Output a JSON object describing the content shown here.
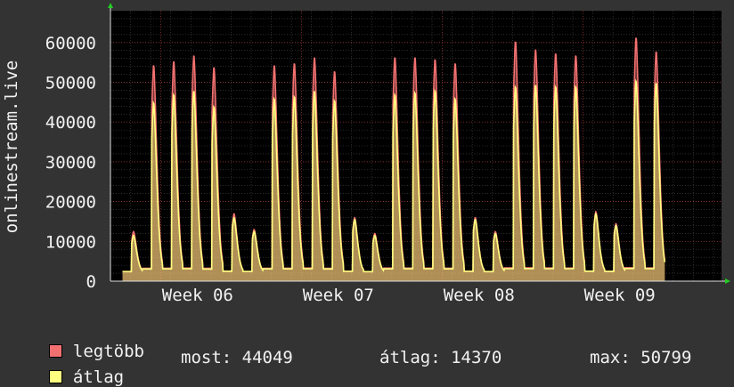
{
  "chart_data": {
    "type": "area",
    "ylabel": "onlinestream.live",
    "ylim": [
      0,
      68000
    ],
    "yticks": [
      0,
      10000,
      20000,
      30000,
      40000,
      50000,
      60000
    ],
    "xticks": [
      {
        "label": "Week 06",
        "day": 5
      },
      {
        "label": "Week 07",
        "day": 12
      },
      {
        "label": "Week 08",
        "day": 19
      },
      {
        "label": "Week 09",
        "day": 26
      }
    ],
    "x_range_days": [
      0,
      30.4
    ],
    "colors": {
      "legtobb": "#f27070",
      "atlag": "#ffff80",
      "background": "#000000",
      "page": "#333333"
    },
    "series": [
      {
        "name": "legtöbb",
        "daily_peaks": [
          12500,
          54500,
          55500,
          57000,
          54000,
          17000,
          13000,
          54500,
          55000,
          56500,
          53000,
          16000,
          12000,
          56500,
          56500,
          56000,
          55000,
          16000,
          12500,
          60500,
          58500,
          57500,
          57000,
          17500,
          14500,
          61500,
          58000
        ]
      },
      {
        "name": "átlag",
        "daily_peaks": [
          11500,
          45000,
          47000,
          48000,
          44000,
          16000,
          12500,
          46000,
          46500,
          48000,
          45500,
          15500,
          11500,
          47000,
          47500,
          48000,
          46000,
          15500,
          12000,
          49000,
          49500,
          49000,
          49000,
          17000,
          14000,
          50500,
          50000
        ]
      }
    ]
  },
  "legend": {
    "legtobb_label": "legtöbb",
    "atlag_label": "átlag"
  },
  "stats": {
    "most": "most: 44049",
    "atlag": "átlag: 14370",
    "max": "max: 50799"
  }
}
